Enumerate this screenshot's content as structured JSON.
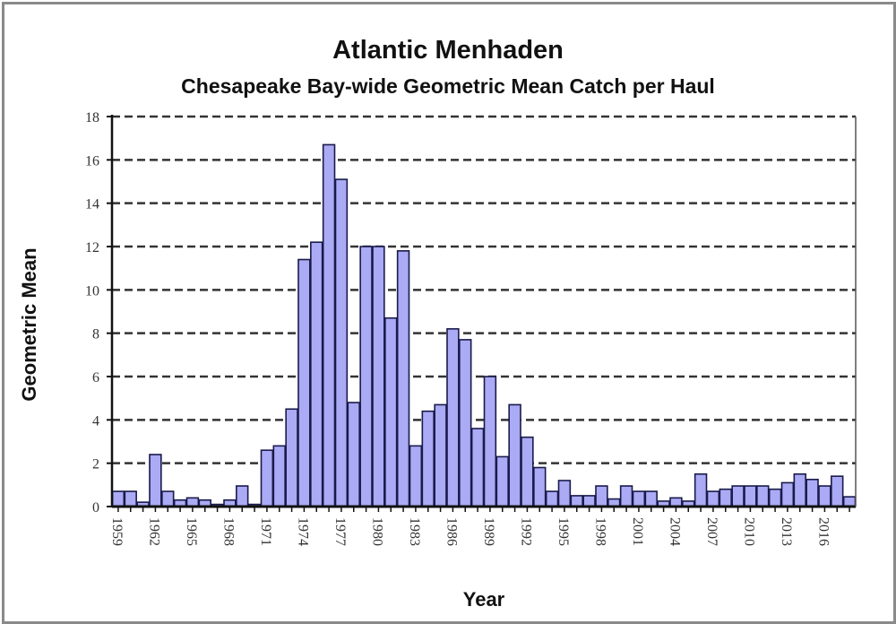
{
  "chart_data": {
    "type": "bar",
    "title": "Atlantic Menhaden",
    "subtitle": "Chesapeake Bay-wide Geometric Mean Catch per Haul",
    "xlabel": "Year",
    "ylabel": "Geometric Mean",
    "ylim": [
      0,
      18
    ],
    "yticks": [
      0,
      2,
      4,
      6,
      8,
      10,
      12,
      14,
      16,
      18
    ],
    "xtick_labels": [
      "1959",
      "1962",
      "1965",
      "1968",
      "1971",
      "1974",
      "1977",
      "1980",
      "1983",
      "1986",
      "1989",
      "1992",
      "1995",
      "1998",
      "2001",
      "2004",
      "2007",
      "2010",
      "2013",
      "2016"
    ],
    "grid": "horizontal dashed",
    "legend": "none",
    "bar_color": "#aaaaf5",
    "bar_edge_color": "#1a1a4a",
    "categories": [
      "1959",
      "1960",
      "1961",
      "1962",
      "1963",
      "1964",
      "1965",
      "1966",
      "1967",
      "1968",
      "1969",
      "1970",
      "1971",
      "1972",
      "1973",
      "1974",
      "1975",
      "1976",
      "1977",
      "1978",
      "1979",
      "1980",
      "1981",
      "1982",
      "1983",
      "1984",
      "1985",
      "1986",
      "1987",
      "1988",
      "1989",
      "1990",
      "1991",
      "1992",
      "1993",
      "1994",
      "1995",
      "1996",
      "1997",
      "1998",
      "1999",
      "2000",
      "2001",
      "2002",
      "2003",
      "2004",
      "2005",
      "2006",
      "2007",
      "2008",
      "2009",
      "2010",
      "2011",
      "2012",
      "2013",
      "2014",
      "2015",
      "2016",
      "2017",
      "2018"
    ],
    "values": [
      0.7,
      0.7,
      0.2,
      2.4,
      0.7,
      0.3,
      0.4,
      0.3,
      0.1,
      0.3,
      0.95,
      0.1,
      2.6,
      2.8,
      4.5,
      11.4,
      12.2,
      16.7,
      15.1,
      4.8,
      12.0,
      12.0,
      8.7,
      11.8,
      2.8,
      4.4,
      4.7,
      8.2,
      7.7,
      3.6,
      6.0,
      2.3,
      4.7,
      3.2,
      1.8,
      0.7,
      1.2,
      0.5,
      0.5,
      0.95,
      0.35,
      0.95,
      0.7,
      0.7,
      0.25,
      0.4,
      0.25,
      1.5,
      0.7,
      0.8,
      0.95,
      0.95,
      0.95,
      0.8,
      1.1,
      1.5,
      1.25,
      0.95,
      1.4,
      0.45
    ]
  }
}
